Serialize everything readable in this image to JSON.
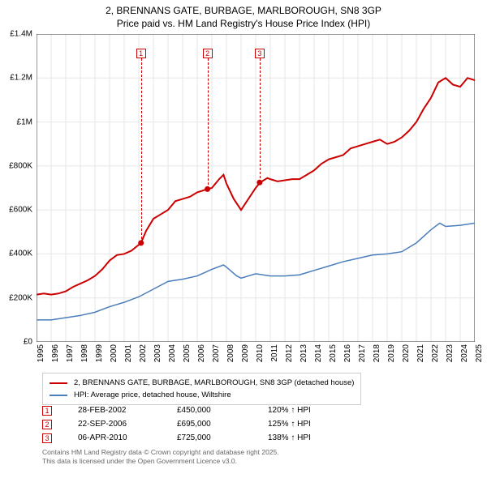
{
  "title_line1": "2, BRENNANS GATE, BURBAGE, MARLBOROUGH, SN8 3GP",
  "title_line2": "Price paid vs. HM Land Registry's House Price Index (HPI)",
  "chart": {
    "type": "line",
    "x_min": 1995,
    "x_max": 2025,
    "y_min": 0,
    "y_max": 1400000,
    "yticks": [
      {
        "v": 0,
        "label": "£0"
      },
      {
        "v": 200000,
        "label": "£200K"
      },
      {
        "v": 400000,
        "label": "£400K"
      },
      {
        "v": 600000,
        "label": "£600K"
      },
      {
        "v": 800000,
        "label": "£800K"
      },
      {
        "v": 1000000,
        "label": "£1M"
      },
      {
        "v": 1200000,
        "label": "£1.2M"
      },
      {
        "v": 1400000,
        "label": "£1.4M"
      }
    ],
    "xticks": [
      1995,
      1996,
      1997,
      1998,
      1999,
      2000,
      2001,
      2002,
      2003,
      2004,
      2005,
      2006,
      2007,
      2008,
      2009,
      2010,
      2011,
      2012,
      2013,
      2014,
      2015,
      2016,
      2017,
      2018,
      2019,
      2020,
      2021,
      2022,
      2023,
      2024,
      2025
    ],
    "grid_color": "#e6e6e6",
    "axis_color": "#333333",
    "background": "#ffffff",
    "tick_fontsize": 10,
    "series": [
      {
        "name": "property",
        "color": "#cc0000",
        "width": 2,
        "data": [
          [
            1995,
            215000
          ],
          [
            1995.5,
            220000
          ],
          [
            1996,
            215000
          ],
          [
            1996.5,
            220000
          ],
          [
            1997,
            230000
          ],
          [
            1997.5,
            250000
          ],
          [
            1998,
            265000
          ],
          [
            1998.5,
            280000
          ],
          [
            1999,
            300000
          ],
          [
            1999.5,
            330000
          ],
          [
            2000,
            370000
          ],
          [
            2000.5,
            395000
          ],
          [
            2001,
            400000
          ],
          [
            2001.5,
            415000
          ],
          [
            2002.15,
            450000
          ],
          [
            2002.5,
            505000
          ],
          [
            2003,
            560000
          ],
          [
            2003.5,
            580000
          ],
          [
            2004,
            600000
          ],
          [
            2004.5,
            640000
          ],
          [
            2005,
            650000
          ],
          [
            2005.5,
            660000
          ],
          [
            2006,
            680000
          ],
          [
            2006.7,
            695000
          ],
          [
            2007,
            700000
          ],
          [
            2007.5,
            740000
          ],
          [
            2007.8,
            760000
          ],
          [
            2008,
            720000
          ],
          [
            2008.5,
            650000
          ],
          [
            2009,
            600000
          ],
          [
            2009.5,
            650000
          ],
          [
            2010,
            700000
          ],
          [
            2010.3,
            725000
          ],
          [
            2010.8,
            745000
          ],
          [
            2011,
            740000
          ],
          [
            2011.5,
            730000
          ],
          [
            2012,
            735000
          ],
          [
            2012.5,
            740000
          ],
          [
            2013,
            740000
          ],
          [
            2013.5,
            760000
          ],
          [
            2014,
            780000
          ],
          [
            2014.5,
            810000
          ],
          [
            2015,
            830000
          ],
          [
            2015.5,
            840000
          ],
          [
            2016,
            850000
          ],
          [
            2016.5,
            880000
          ],
          [
            2017,
            890000
          ],
          [
            2017.5,
            900000
          ],
          [
            2018,
            910000
          ],
          [
            2018.5,
            920000
          ],
          [
            2019,
            900000
          ],
          [
            2019.5,
            910000
          ],
          [
            2020,
            930000
          ],
          [
            2020.5,
            960000
          ],
          [
            2021,
            1000000
          ],
          [
            2021.5,
            1060000
          ],
          [
            2022,
            1110000
          ],
          [
            2022.5,
            1180000
          ],
          [
            2023,
            1200000
          ],
          [
            2023.5,
            1170000
          ],
          [
            2024,
            1160000
          ],
          [
            2024.5,
            1200000
          ],
          [
            2025,
            1190000
          ]
        ]
      },
      {
        "name": "hpi",
        "color": "#4a7ebb",
        "width": 1.5,
        "data": [
          [
            1995,
            100000
          ],
          [
            1996,
            100000
          ],
          [
            1997,
            110000
          ],
          [
            1998,
            120000
          ],
          [
            1999,
            135000
          ],
          [
            2000,
            160000
          ],
          [
            2001,
            180000
          ],
          [
            2002,
            205000
          ],
          [
            2003,
            240000
          ],
          [
            2004,
            275000
          ],
          [
            2005,
            285000
          ],
          [
            2006,
            300000
          ],
          [
            2007,
            330000
          ],
          [
            2007.8,
            350000
          ],
          [
            2008,
            340000
          ],
          [
            2008.7,
            300000
          ],
          [
            2009,
            290000
          ],
          [
            2010,
            310000
          ],
          [
            2011,
            300000
          ],
          [
            2012,
            300000
          ],
          [
            2013,
            305000
          ],
          [
            2014,
            325000
          ],
          [
            2015,
            345000
          ],
          [
            2016,
            365000
          ],
          [
            2017,
            380000
          ],
          [
            2018,
            395000
          ],
          [
            2019,
            400000
          ],
          [
            2020,
            410000
          ],
          [
            2021,
            450000
          ],
          [
            2022,
            510000
          ],
          [
            2022.6,
            540000
          ],
          [
            2023,
            525000
          ],
          [
            2024,
            530000
          ],
          [
            2025,
            540000
          ]
        ]
      }
    ],
    "sale_points": [
      {
        "num": "1",
        "x": 2002.15,
        "y": 450000,
        "color": "#cc0000"
      },
      {
        "num": "2",
        "x": 2006.7,
        "y": 695000,
        "color": "#cc0000"
      },
      {
        "num": "3",
        "x": 2010.27,
        "y": 725000,
        "color": "#cc0000"
      }
    ]
  },
  "legend": {
    "items": [
      {
        "color": "#cc0000",
        "width": 2,
        "label": "2, BRENNANS GATE, BURBAGE, MARLBOROUGH, SN8 3GP (detached house)"
      },
      {
        "color": "#4a7ebb",
        "width": 1.5,
        "label": "HPI: Average price, detached house, Wiltshire"
      }
    ]
  },
  "events": [
    {
      "num": "1",
      "color": "#cc0000",
      "date": "28-FEB-2002",
      "price": "£450,000",
      "pct": "120% ↑ HPI"
    },
    {
      "num": "2",
      "color": "#cc0000",
      "date": "22-SEP-2006",
      "price": "£695,000",
      "pct": "125% ↑ HPI"
    },
    {
      "num": "3",
      "color": "#cc0000",
      "date": "06-APR-2010",
      "price": "£725,000",
      "pct": "138% ↑ HPI"
    }
  ],
  "footer_line1": "Contains HM Land Registry data © Crown copyright and database right 2025.",
  "footer_line2": "This data is licensed under the Open Government Licence v3.0."
}
